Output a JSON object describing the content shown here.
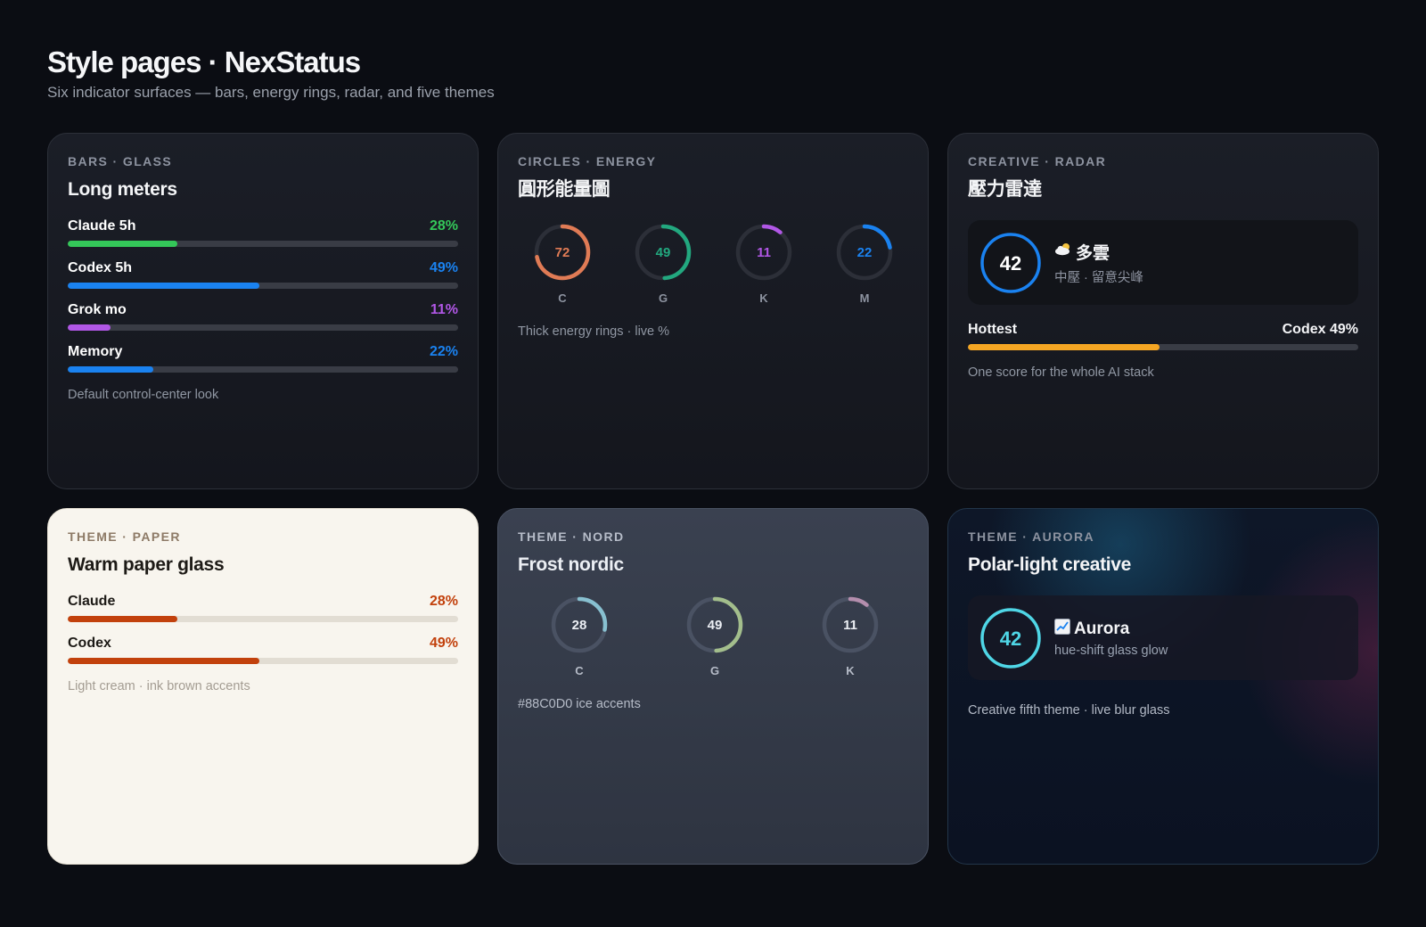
{
  "header": {
    "title": "Style pages · NexStatus",
    "subtitle": "Six indicator surfaces — bars, energy rings, radar, and five themes"
  },
  "cards": {
    "bars": {
      "kicker": "BARS · GLASS",
      "title": "Long meters",
      "meters": [
        {
          "label": "Claude 5h",
          "value": "28%",
          "fraction": 0.28,
          "color": "#34c759"
        },
        {
          "label": "Codex 5h",
          "value": "49%",
          "fraction": 0.49,
          "color": "#1a82f0"
        },
        {
          "label": "Grok mo",
          "value": "11%",
          "fraction": 0.11,
          "color": "#b157e6"
        },
        {
          "label": "Memory",
          "value": "22%",
          "fraction": 0.22,
          "color": "#1a82f0"
        }
      ],
      "footnote": "Default control-center look"
    },
    "circles": {
      "kicker": "CIRCLES · ENERGY",
      "title": "圓形能量圖",
      "rings": [
        {
          "label": "C",
          "value": "72",
          "fraction": 0.72,
          "color": "#e07b55"
        },
        {
          "label": "G",
          "value": "49",
          "fraction": 0.49,
          "color": "#22a87f"
        },
        {
          "label": "K",
          "value": "11",
          "fraction": 0.11,
          "color": "#b157e6"
        },
        {
          "label": "M",
          "value": "22",
          "fraction": 0.22,
          "color": "#1a82f0"
        }
      ],
      "footnote": "Thick energy rings · live %"
    },
    "radar": {
      "kicker": "CREATIVE · RADAR",
      "title": "壓力雷達",
      "score": "42",
      "score_color": "#1a82f0",
      "weather_icon": "cloud-sun-icon",
      "weather": "多雲",
      "weather_sub": "中壓 · 留意尖峰",
      "hottest_label": "Hottest",
      "hottest_value": "Codex 49%",
      "hottest_fraction": 0.49,
      "hottest_color": "#f5a623",
      "footnote": "One score for the whole AI stack"
    },
    "paper": {
      "kicker": "THEME · PAPER",
      "title": "Warm paper glass",
      "meters": [
        {
          "label": "Claude",
          "value": "28%",
          "fraction": 0.28,
          "color": "#c2410c"
        },
        {
          "label": "Codex",
          "value": "49%",
          "fraction": 0.49,
          "color": "#c2410c"
        }
      ],
      "footnote": "Light cream · ink brown accents"
    },
    "nord": {
      "kicker": "THEME · NORD",
      "title": "Frost nordic",
      "rings": [
        {
          "label": "C",
          "value": "28",
          "fraction": 0.28,
          "color": "#88c0d0"
        },
        {
          "label": "G",
          "value": "49",
          "fraction": 0.49,
          "color": "#a3be8c"
        },
        {
          "label": "K",
          "value": "11",
          "fraction": 0.11,
          "color": "#b48ead"
        }
      ],
      "footnote": "#88C0D0 ice accents"
    },
    "aurora": {
      "kicker": "THEME · AURORA",
      "title": "Polar-light creative",
      "score": "42",
      "score_color": "#4fd6e6",
      "chart_icon": "chart-increasing-icon",
      "name": "Aurora",
      "sub": "hue-shift glass glow",
      "footnote": "Creative fifth theme · live blur glass"
    }
  }
}
